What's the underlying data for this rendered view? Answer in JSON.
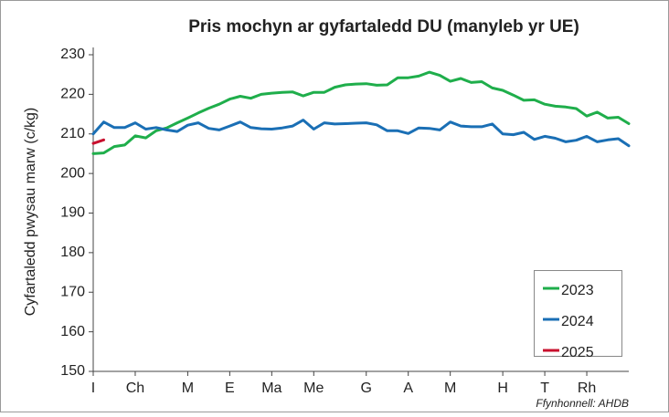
{
  "chart_data": {
    "type": "line",
    "title": "Pris mochyn ar gyfartaledd DU (manyleb yr UE)",
    "y_label": "Cyfartaledd pwysau marw (c/kg)",
    "source": "Ffynhonnell: AHDB",
    "categories": [
      "I",
      null,
      null,
      null,
      "Ch",
      null,
      null,
      null,
      null,
      "M",
      null,
      null,
      null,
      "E",
      null,
      null,
      null,
      "Ma",
      null,
      null,
      null,
      "Me",
      null,
      null,
      null,
      null,
      "G",
      null,
      null,
      null,
      "A",
      null,
      null,
      null,
      "M",
      null,
      null,
      null,
      null,
      "H",
      null,
      null,
      null,
      "T",
      null,
      null,
      null,
      "Rh",
      null,
      null,
      null,
      null
    ],
    "series": [
      {
        "name": "2023",
        "color": "#1fae4b",
        "values": [
          205,
          205.2,
          206.8,
          207.2,
          209.5,
          209,
          210.8,
          211.5,
          212.8,
          214,
          215.3,
          216.5,
          217.5,
          218.8,
          219.5,
          219,
          220,
          220.3,
          220.5,
          220.6,
          219.6,
          220.5,
          220.5,
          221.8,
          222.4,
          222.6,
          222.7,
          222.3,
          222.4,
          224.2,
          224.2,
          224.6,
          225.6,
          224.8,
          223.3,
          224,
          223,
          223.2,
          221.6,
          221,
          219.8,
          218.5,
          218.6,
          217.5,
          217,
          216.8,
          216.4,
          214.5,
          215.5,
          214,
          214.2,
          212.6
        ]
      },
      {
        "name": "2024",
        "color": "#1a6fb5",
        "values": [
          210,
          213,
          211.6,
          211.6,
          212.8,
          211.2,
          211.6,
          211,
          210.6,
          212.2,
          212.8,
          211.4,
          211,
          212,
          213,
          211.6,
          211.3,
          211.2,
          211.5,
          212,
          213.5,
          211.2,
          212.8,
          212.5,
          212.6,
          212.7,
          212.8,
          212.3,
          210.8,
          210.8,
          210.1,
          211.5,
          211.4,
          211,
          213,
          212,
          211.8,
          211.8,
          212.5,
          210,
          209.8,
          210.4,
          208.6,
          209.4,
          208.9,
          208,
          208.4,
          209.4,
          208,
          208.5,
          208.8,
          207
        ]
      },
      {
        "name": "2025",
        "color": "#c8102e",
        "values": [
          207.6,
          208.5,
          null,
          null,
          null,
          null,
          null,
          null,
          null,
          null,
          null,
          null,
          null,
          null,
          null,
          null,
          null,
          null,
          null,
          null,
          null,
          null,
          null,
          null,
          null,
          null,
          null,
          null,
          null,
          null,
          null,
          null,
          null,
          null,
          null,
          null,
          null,
          null,
          null,
          null,
          null,
          null,
          null,
          null,
          null,
          null,
          null,
          null,
          null,
          null,
          null,
          null
        ]
      }
    ],
    "ylim": [
      150,
      230
    ],
    "yticks": [
      150,
      160,
      170,
      180,
      190,
      200,
      210,
      220,
      230
    ],
    "legend": "lower right"
  }
}
